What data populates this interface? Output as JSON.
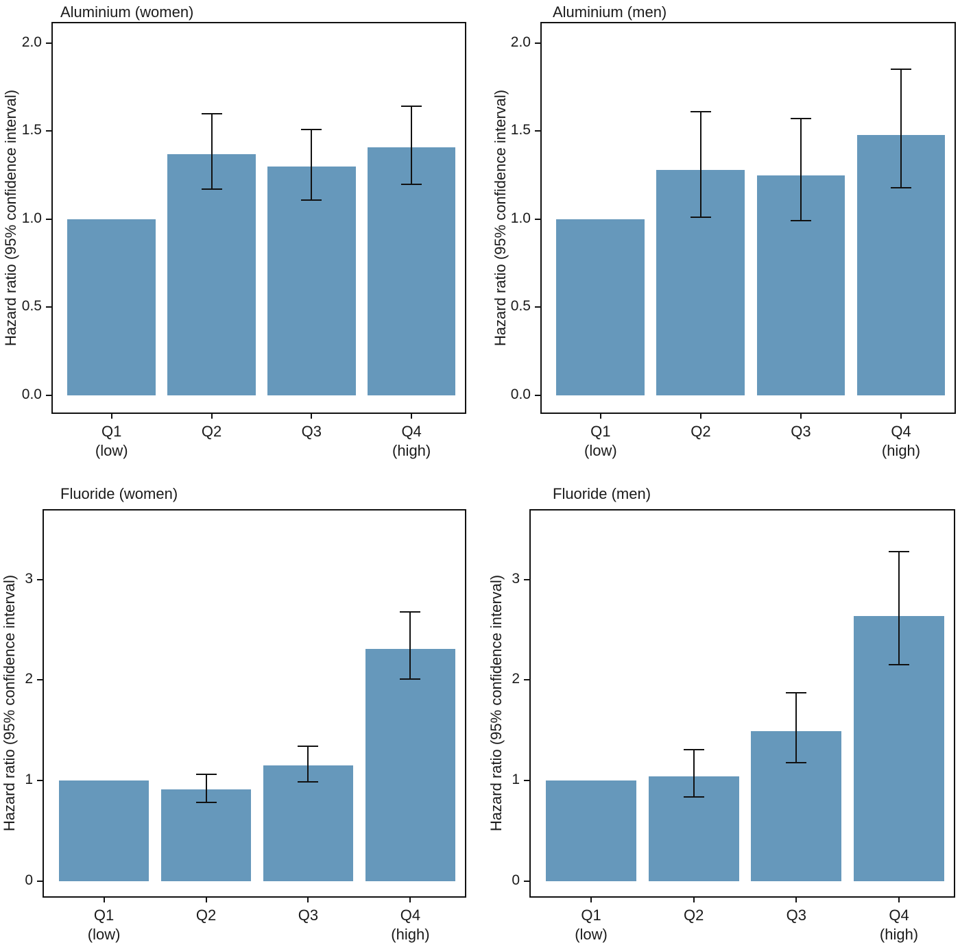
{
  "page": {
    "background": "#ffffff",
    "bar_color": "#6698bb",
    "axis_color": "#111111",
    "text_color": "#1a1a1a"
  },
  "chart_data": [
    {
      "type": "bar",
      "title": "Aluminium (women)",
      "ylabel": "Hazard ratio (95% confidence interval)",
      "xlabel": "",
      "categories": [
        "Q1 (low)",
        "Q2",
        "Q3",
        "Q4 (high)"
      ],
      "category_lines": [
        [
          "Q1",
          "(low)"
        ],
        [
          "Q2"
        ],
        [
          "Q3"
        ],
        [
          "Q4",
          "(high)"
        ]
      ],
      "values": [
        1.0,
        1.37,
        1.3,
        1.41
      ],
      "ci_low": [
        null,
        1.17,
        1.11,
        1.2
      ],
      "ci_high": [
        null,
        1.6,
        1.51,
        1.64
      ],
      "ylim": [
        -0.105,
        2.12
      ],
      "yticks": [
        [
          0,
          "0.0"
        ],
        [
          0.5,
          "0.5"
        ],
        [
          1,
          "1.0"
        ],
        [
          1.5,
          "1.5"
        ],
        [
          2,
          "2.0"
        ]
      ],
      "bar_color": "#6698bb",
      "grid": false,
      "legend": "none"
    },
    {
      "type": "bar",
      "title": "Aluminium (men)",
      "ylabel": "Hazard ratio (95% confidence interval)",
      "xlabel": "",
      "categories": [
        "Q1 (low)",
        "Q2",
        "Q3",
        "Q4 (high)"
      ],
      "category_lines": [
        [
          "Q1",
          "(low)"
        ],
        [
          "Q2"
        ],
        [
          "Q3"
        ],
        [
          "Q4",
          "(high)"
        ]
      ],
      "values": [
        1.0,
        1.28,
        1.25,
        1.48
      ],
      "ci_low": [
        null,
        1.01,
        0.99,
        1.18
      ],
      "ci_high": [
        null,
        1.61,
        1.57,
        1.85
      ],
      "ylim": [
        -0.105,
        2.12
      ],
      "yticks": [
        [
          0,
          "0.0"
        ],
        [
          0.5,
          "0.5"
        ],
        [
          1,
          "1.0"
        ],
        [
          1.5,
          "1.5"
        ],
        [
          2,
          "2.0"
        ]
      ],
      "bar_color": "#6698bb",
      "grid": false,
      "legend": "none"
    },
    {
      "type": "bar",
      "title": "Fluoride (women)",
      "ylabel": "Hazard ratio (95% confidence interval)",
      "xlabel": "",
      "categories": [
        "Q1 (low)",
        "Q2",
        "Q3",
        "Q4 (high)"
      ],
      "category_lines": [
        [
          "Q1",
          "(low)"
        ],
        [
          "Q2"
        ],
        [
          "Q3"
        ],
        [
          "Q4",
          "(high)"
        ]
      ],
      "values": [
        1.0,
        0.91,
        1.15,
        2.31
      ],
      "ci_low": [
        null,
        0.78,
        0.99,
        2.01
      ],
      "ci_high": [
        null,
        1.06,
        1.34,
        2.68
      ],
      "ylim": [
        -0.165,
        3.7
      ],
      "yticks": [
        [
          0,
          "0"
        ],
        [
          1,
          "1"
        ],
        [
          2,
          "2"
        ],
        [
          3,
          "3"
        ]
      ],
      "bar_color": "#6698bb",
      "grid": false,
      "legend": "none"
    },
    {
      "type": "bar",
      "title": "Fluoride (men)",
      "ylabel": "Hazard ratio (95% confidence interval)",
      "xlabel": "",
      "categories": [
        "Q1 (low)",
        "Q2",
        "Q3",
        "Q4 (high)"
      ],
      "category_lines": [
        [
          "Q1",
          "(low)"
        ],
        [
          "Q2"
        ],
        [
          "Q3"
        ],
        [
          "Q4",
          "(high)"
        ]
      ],
      "values": [
        1.0,
        1.04,
        1.49,
        2.64
      ],
      "ci_low": [
        null,
        0.84,
        1.18,
        2.15
      ],
      "ci_high": [
        null,
        1.31,
        1.87,
        3.28
      ],
      "ylim": [
        -0.165,
        3.7
      ],
      "yticks": [
        [
          0,
          "0"
        ],
        [
          1,
          "1"
        ],
        [
          2,
          "2"
        ],
        [
          3,
          "3"
        ]
      ],
      "bar_color": "#6698bb",
      "grid": false,
      "legend": "none"
    }
  ]
}
